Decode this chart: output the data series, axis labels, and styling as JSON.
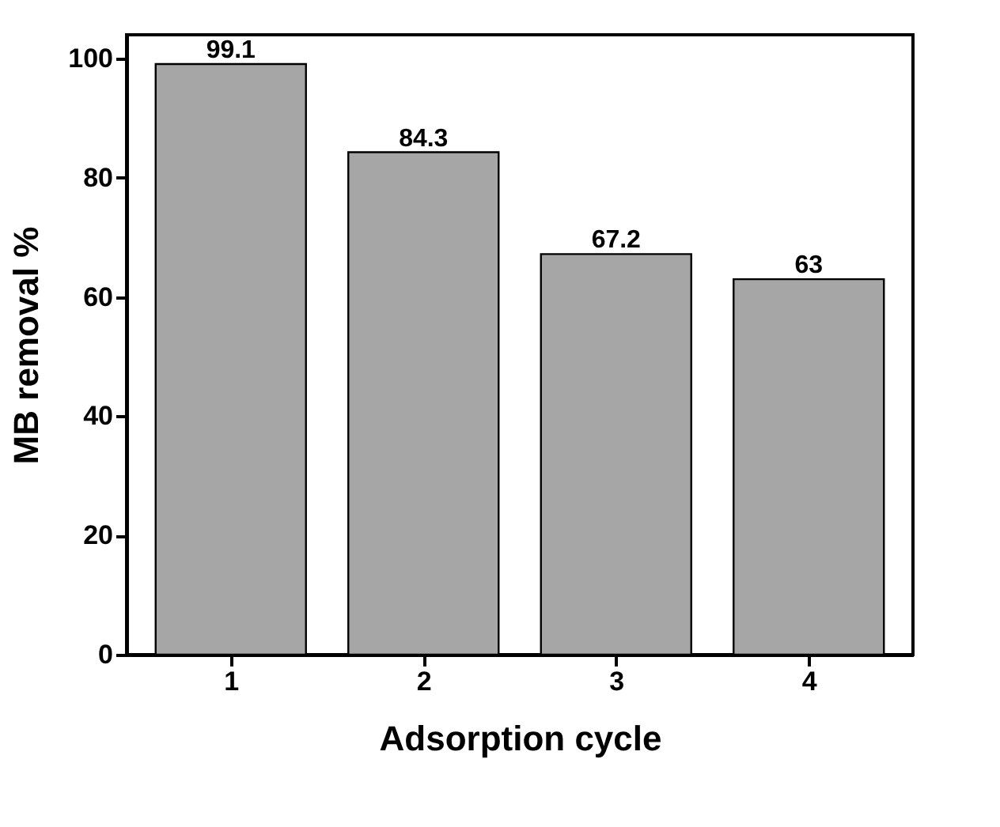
{
  "chart_data": {
    "type": "bar",
    "xlabel": "Adsorption cycle",
    "ylabel": "MB removal %",
    "categories": [
      "1",
      "2",
      "3",
      "4"
    ],
    "values": [
      99.1,
      84.3,
      67.2,
      63
    ],
    "color": "#a6a6a6",
    "ylim": [
      0,
      104
    ],
    "yticks": [
      0,
      20,
      40,
      60,
      80,
      100
    ],
    "data_labels": true,
    "grid": false
  }
}
